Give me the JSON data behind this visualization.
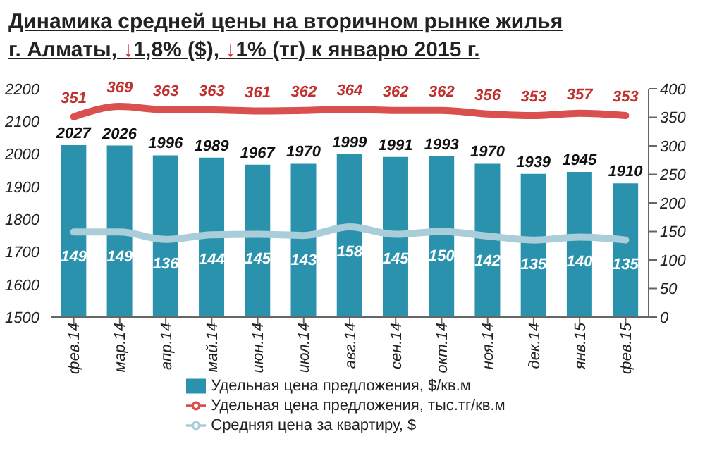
{
  "chart_data": {
    "type": "bar",
    "title": "Динамика средней  цены на вторичном рынке жилья",
    "subtitle": "г. Алматы, ↓1,8% ($), ↓1% (тг) к январю 2015 г.",
    "categories": [
      "фев.14",
      "мар.14",
      "апр.14",
      "май.14",
      "июн.14",
      "июл.14",
      "авг.14",
      "сен.14",
      "окт.14",
      "ноя.14",
      "дек.14",
      "янв.15",
      "фев.15"
    ],
    "series": [
      {
        "name": "Удельная цена предложения, $/кв.м",
        "color": "#2b92ae",
        "values": [
          2027,
          2026,
          1996,
          1989,
          1967,
          1970,
          1999,
          1991,
          1993,
          1970,
          1939,
          1945,
          1910
        ]
      },
      {
        "name": "Удельная цена предложения, тыс.тг/кв.м",
        "type": "line",
        "axis": "y2",
        "color": "#d9504f",
        "values": [
          351,
          369,
          363,
          363,
          361,
          362,
          364,
          362,
          362,
          356,
          353,
          357,
          353
        ]
      },
      {
        "name": "Средняя цена за квартиру, $",
        "type": "line",
        "axis": "y2",
        "color": "#a9cdd9",
        "values": [
          149,
          149,
          136,
          144,
          145,
          143,
          158,
          145,
          150,
          142,
          135,
          140,
          135
        ]
      }
    ],
    "ylim": [
      1500,
      2200
    ],
    "yticks": [
      1500,
      1600,
      1700,
      1800,
      1900,
      2000,
      2100,
      2200
    ],
    "y2lim": [
      0,
      400
    ],
    "y2ticks": [
      0,
      50,
      100,
      150,
      200,
      250,
      300,
      350,
      400
    ],
    "data_labels": true,
    "legend": "bottom",
    "grid": false,
    "marker": "none"
  }
}
